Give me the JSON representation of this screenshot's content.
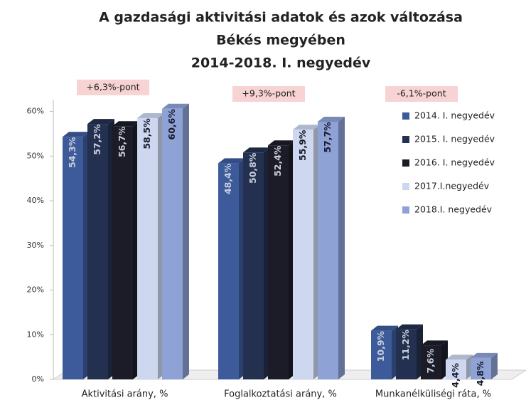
{
  "chart_data": {
    "type": "bar",
    "title_lines": [
      "A gazdasági aktivitási adatok és azok változása",
      "Békés megyében",
      "2014-2018. I. negyedév"
    ],
    "categories": [
      "Aktivitási arány, %",
      "Foglalkoztatási arány, %",
      "Munkanélküliségi ráta, %"
    ],
    "series": [
      {
        "name": "2014. I. negyedév",
        "color": "#3d5b9b",
        "values": [
          54.3,
          48.4,
          10.9
        ],
        "value_labels": [
          "54,3%",
          "48,4%",
          "10,9%"
        ]
      },
      {
        "name": "2015. I. negyedév",
        "color": "#23304f",
        "values": [
          57.2,
          50.8,
          11.2
        ],
        "value_labels": [
          "57,2%",
          "50,8%",
          "11,2%"
        ]
      },
      {
        "name": "2016. I. negyedév",
        "color": "#1c1c28",
        "values": [
          56.7,
          52.4,
          7.6
        ],
        "value_labels": [
          "56,7%",
          "52,4%",
          "7,6%"
        ]
      },
      {
        "name": "2017.I.negyedév",
        "color": "#cdd8f0",
        "values": [
          58.5,
          55.9,
          4.4
        ],
        "value_labels": [
          "58,5%",
          "55,9%",
          "4,4%"
        ]
      },
      {
        "name": "2018.I. negyedév",
        "color": "#8ea2d6",
        "values": [
          60.6,
          57.7,
          4.8
        ],
        "value_labels": [
          "60,6%",
          "57,7%",
          "4,8%"
        ]
      }
    ],
    "annotations": [
      "+6,3%-pont",
      "+9,3%-pont",
      "-6,1%-pont"
    ],
    "ylim": [
      0,
      62
    ],
    "yticks": [
      {
        "value": 0,
        "label": "0%"
      },
      {
        "value": 10,
        "label": "10%"
      },
      {
        "value": 20,
        "label": "20%"
      },
      {
        "value": 30,
        "label": "30%"
      },
      {
        "value": 40,
        "label": "40%"
      },
      {
        "value": 50,
        "label": "50%"
      },
      {
        "value": 60,
        "label": "60%"
      }
    ],
    "grid": false,
    "legend": "right"
  }
}
